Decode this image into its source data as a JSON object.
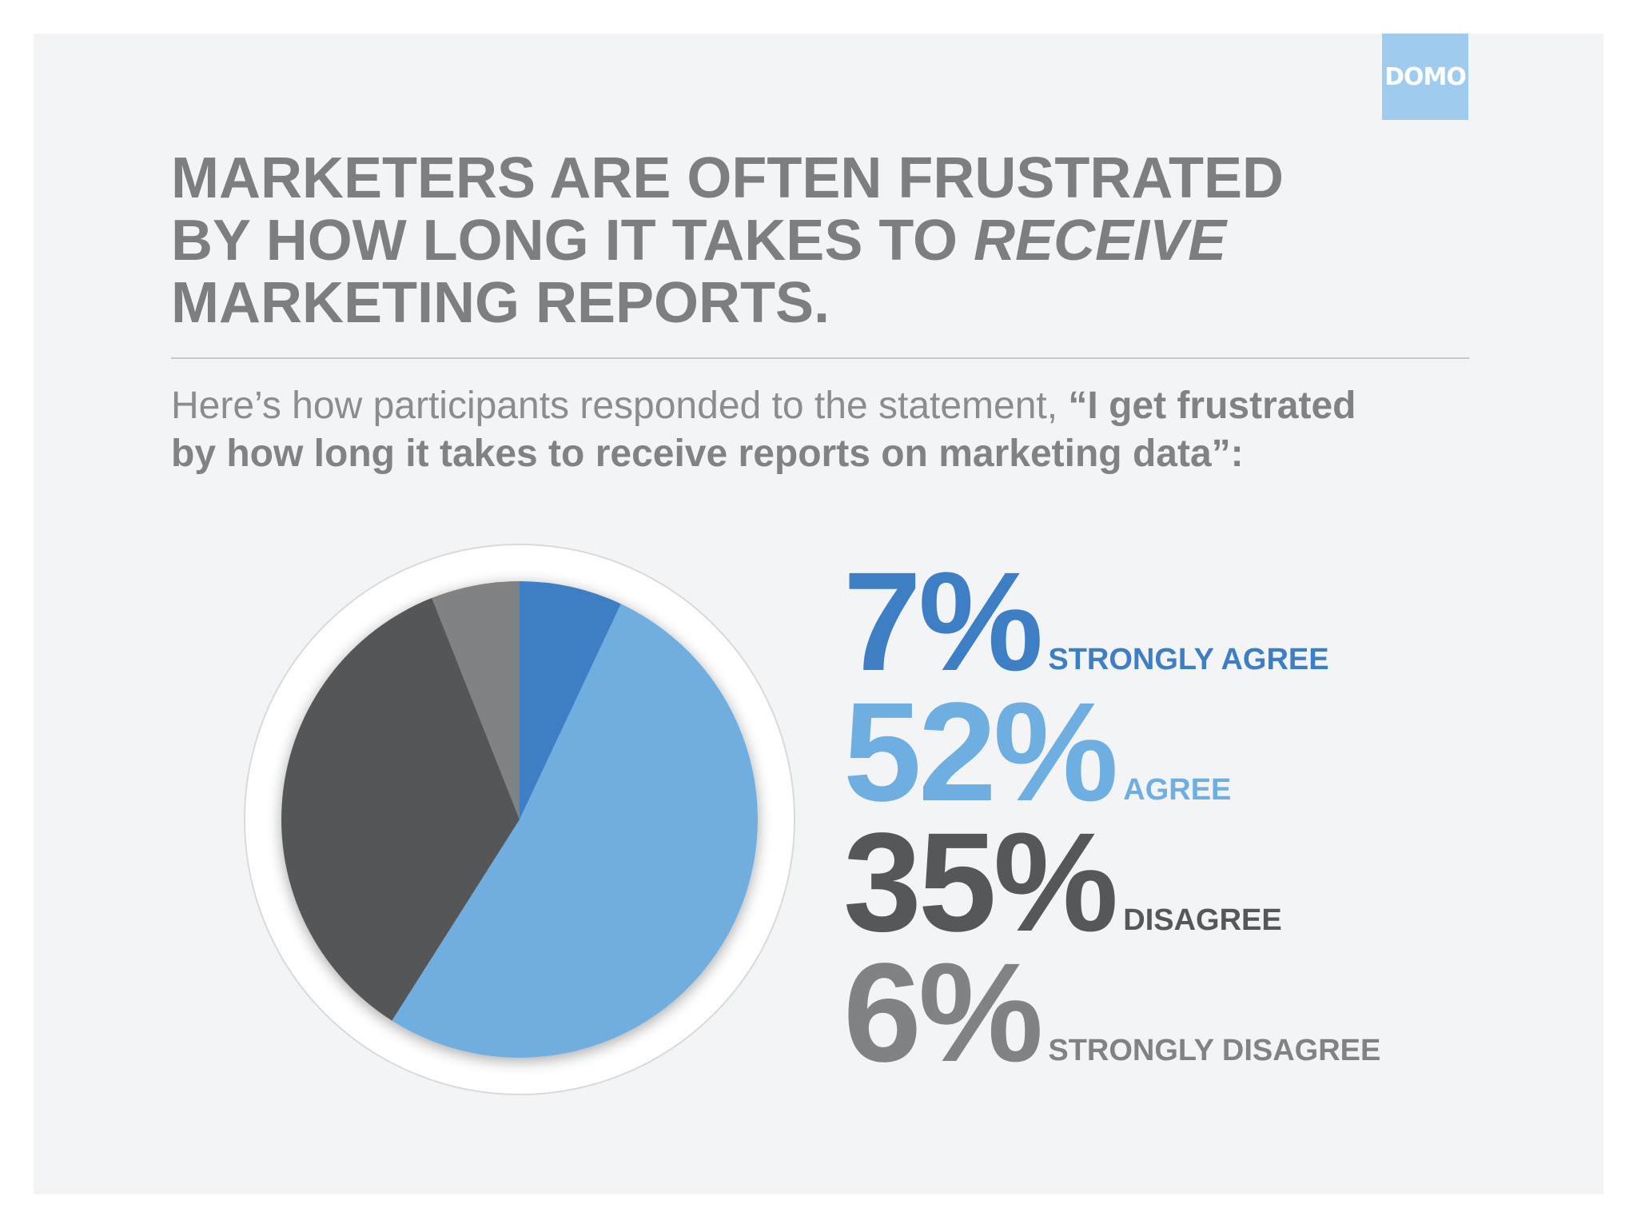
{
  "logo": {
    "text": "DOMO"
  },
  "headline": {
    "line1": "MARKETERS ARE OFTEN FRUSTRATED",
    "line2_prefix": "BY HOW LONG IT TAKES TO ",
    "line2_emphasis": "RECEIVE",
    "line3": "MARKETING REPORTS."
  },
  "subtitle": {
    "intro": "Here’s how participants responded to the statement, ",
    "quote_line1": "“I get frustrated",
    "quote_line2": "by how long it takes to receive reports on marketing data”:"
  },
  "chart_data": {
    "type": "pie",
    "title": "",
    "slices": [
      {
        "label": "STRONGLY AGREE",
        "value": 7,
        "display": "7%",
        "color": "#3d7ec4"
      },
      {
        "label": "AGREE",
        "value": 52,
        "display": "52%",
        "color": "#6faee0"
      },
      {
        "label": "DISAGREE",
        "value": 35,
        "display": "35%",
        "color": "#555759"
      },
      {
        "label": "STRONGLY DISAGREE",
        "value": 6,
        "display": "6%",
        "color": "#808284"
      }
    ],
    "legend_position": "right"
  }
}
